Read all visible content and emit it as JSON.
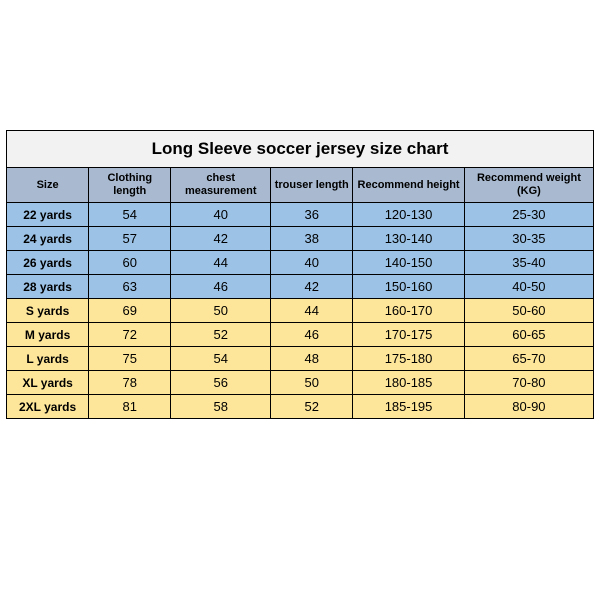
{
  "title": "Long Sleeve soccer jersey size chart",
  "colors": {
    "title_bg": "#f2f2f2",
    "header_bg": "#a9bad0",
    "group1": "#9cc2e5",
    "group2": "#fde599",
    "border": "#000000",
    "text": "#000000"
  },
  "columns": [
    {
      "key": "size",
      "label": "Size"
    },
    {
      "key": "cloth",
      "label": "Clothing length"
    },
    {
      "key": "chest",
      "label": "chest measurement"
    },
    {
      "key": "trouser",
      "label": "trouser length"
    },
    {
      "key": "height",
      "label": "Recommend height"
    },
    {
      "key": "weight",
      "label": "Recommend weight (KG)"
    }
  ],
  "rows": [
    {
      "group": 1,
      "cells": [
        "22 yards",
        "54",
        "40",
        "36",
        "120-130",
        "25-30"
      ]
    },
    {
      "group": 1,
      "cells": [
        "24 yards",
        "57",
        "42",
        "38",
        "130-140",
        "30-35"
      ]
    },
    {
      "group": 1,
      "cells": [
        "26 yards",
        "60",
        "44",
        "40",
        "140-150",
        "35-40"
      ]
    },
    {
      "group": 1,
      "cells": [
        "28 yards",
        "63",
        "46",
        "42",
        "150-160",
        "40-50"
      ]
    },
    {
      "group": 2,
      "cells": [
        "S yards",
        "69",
        "50",
        "44",
        "160-170",
        "50-60"
      ]
    },
    {
      "group": 2,
      "cells": [
        "M yards",
        "72",
        "52",
        "46",
        "170-175",
        "60-65"
      ]
    },
    {
      "group": 2,
      "cells": [
        "L yards",
        "75",
        "54",
        "48",
        "175-180",
        "65-70"
      ]
    },
    {
      "group": 2,
      "cells": [
        "XL yards",
        "78",
        "56",
        "50",
        "180-185",
        "70-80"
      ]
    },
    {
      "group": 2,
      "cells": [
        "2XL yards",
        "81",
        "58",
        "52",
        "185-195",
        "80-90"
      ]
    }
  ]
}
